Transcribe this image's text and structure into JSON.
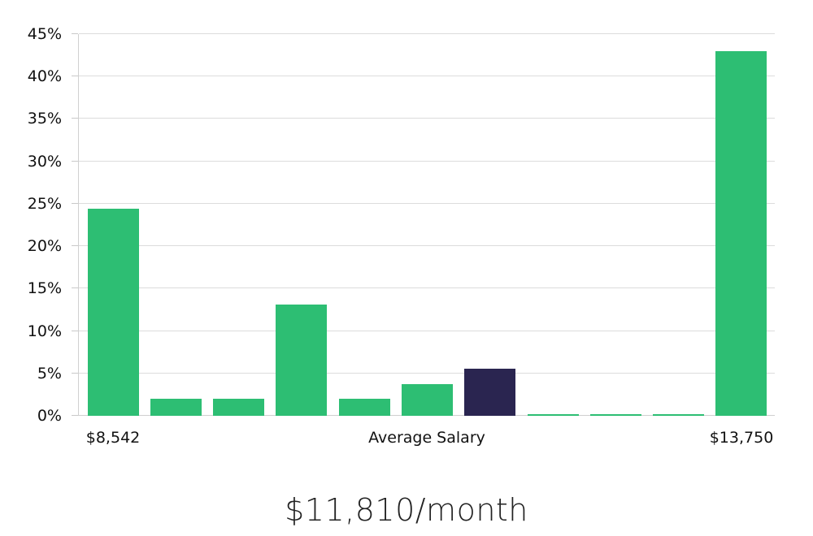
{
  "chart_data": {
    "type": "bar",
    "title": "$11,810/month",
    "xlabel": "",
    "ylabel": "",
    "ylim": [
      0,
      45
    ],
    "grid": true,
    "legend": false,
    "y_ticks": [
      0,
      5,
      10,
      15,
      20,
      25,
      30,
      35,
      40,
      45
    ],
    "y_tick_suffix": "%",
    "values": [
      24.4,
      2.0,
      2.0,
      13.1,
      2.0,
      3.7,
      5.6,
      0.15,
      0.15,
      0.15,
      43.0
    ],
    "highlight_index": 6,
    "highlight_meaning": "average salary bin",
    "x_tick_labels": [
      {
        "label": "$8,542",
        "anchor_bar": 0
      },
      {
        "label": "Average Salary",
        "anchor": "center"
      },
      {
        "label": "$13,750",
        "anchor_bar": 10
      }
    ]
  },
  "colors": {
    "bar_green": "#2DBE73",
    "bar_highlight_navy": "#2A2550",
    "gridline": "#DCDCDC",
    "axis_line": "#D0D0D0",
    "tick_text": "#111111",
    "title_text": "#222222",
    "background": "#FFFFFF"
  }
}
